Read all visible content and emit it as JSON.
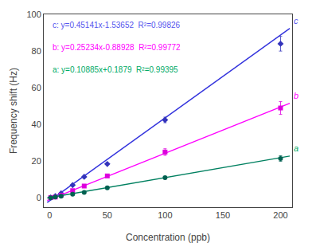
{
  "chart_data": {
    "type": "scatter",
    "xlabel": "Concentration (ppb)",
    "ylabel": "Frequency shift (Hz)",
    "xlim": [
      -5,
      210
    ],
    "ylim": [
      -5,
      100
    ],
    "xticks": [
      0,
      50,
      100,
      150,
      200
    ],
    "yticks": [
      0,
      20,
      40,
      60,
      80,
      100
    ],
    "grid": false,
    "x": [
      1,
      5,
      10,
      20,
      30,
      50,
      100,
      200
    ],
    "series": [
      {
        "name": "c",
        "color": "#3333bb",
        "marker": "diamond",
        "label_color": "#5555ee",
        "values": [
          0.3,
          1.0,
          2.5,
          7.0,
          11.5,
          18.5,
          42.5,
          84.0
        ],
        "errors": [
          0.0,
          0.0,
          0.0,
          0.0,
          0.0,
          0.0,
          1.5,
          4.0
        ],
        "fit": {
          "x": [
            -2,
            208
          ],
          "values": [
            -2.43934,
            92.35676
          ],
          "color": "#3333dd"
        },
        "equation": "c: y=0.45141x-1.53652  R²=0.99826"
      },
      {
        "name": "b",
        "color": "#dd00dd",
        "marker": "square",
        "label_color": "#ff00ff",
        "values": [
          0.2,
          0.5,
          1.5,
          4.0,
          6.5,
          12.0,
          25.0,
          49.0
        ],
        "errors": [
          0.0,
          0.0,
          0.0,
          0.0,
          0.5,
          0.5,
          1.8,
          3.5
        ],
        "fit": {
          "x": [
            -2,
            208
          ],
          "values": [
            -1.39396,
            51.59744
          ],
          "color": "#ff00ff"
        },
        "equation": "b: y=0.25234x-0.88928  R²=0.99772"
      },
      {
        "name": "a",
        "color": "#006050",
        "marker": "circle",
        "label_color": "#00aa66",
        "values": [
          0.1,
          0.5,
          1.0,
          2.0,
          3.0,
          5.5,
          11.0,
          21.5
        ],
        "errors": [
          0.0,
          0.0,
          0.0,
          0.0,
          0.3,
          0.3,
          0.5,
          1.5
        ],
        "fit": {
          "x": [
            -2,
            208
          ],
          "values": [
            -0.0298,
            22.8287
          ],
          "color": "#008060"
        },
        "equation": "a: y=0.10885x+0.1879  R²=0.99395"
      }
    ]
  }
}
